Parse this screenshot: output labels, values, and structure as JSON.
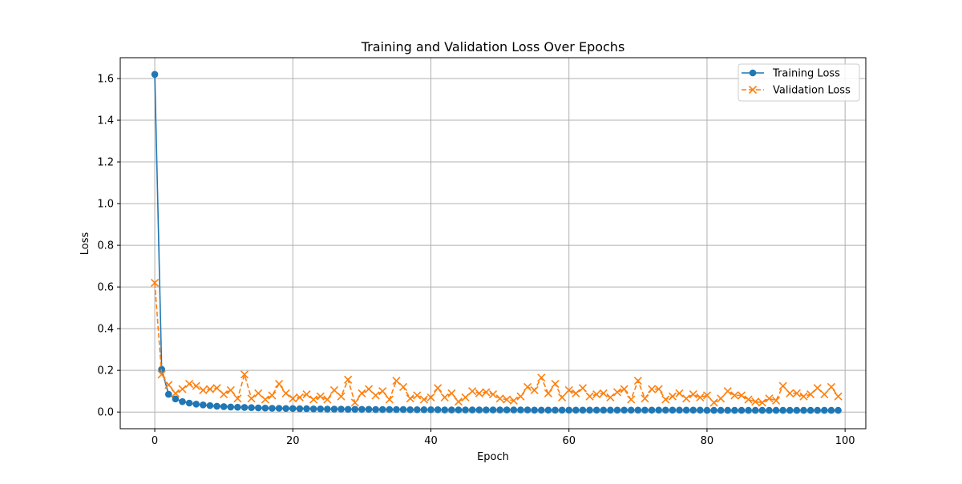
{
  "chart_data": {
    "type": "line",
    "title": "Training and Validation Loss Over Epochs",
    "xlabel": "Epoch",
    "ylabel": "Loss",
    "xlim": [
      -5,
      103
    ],
    "ylim": [
      -0.08,
      1.7
    ],
    "xticks": [
      0,
      20,
      40,
      60,
      80,
      100
    ],
    "yticks": [
      0.0,
      0.2,
      0.4,
      0.6,
      0.8,
      1.0,
      1.2,
      1.4,
      1.6
    ],
    "grid": true,
    "legend": "top-right",
    "x": [
      0,
      1,
      2,
      3,
      4,
      5,
      6,
      7,
      8,
      9,
      10,
      11,
      12,
      13,
      14,
      15,
      16,
      17,
      18,
      19,
      20,
      21,
      22,
      23,
      24,
      25,
      26,
      27,
      28,
      29,
      30,
      31,
      32,
      33,
      34,
      35,
      36,
      37,
      38,
      39,
      40,
      41,
      42,
      43,
      44,
      45,
      46,
      47,
      48,
      49,
      50,
      51,
      52,
      53,
      54,
      55,
      56,
      57,
      58,
      59,
      60,
      61,
      62,
      63,
      64,
      65,
      66,
      67,
      68,
      69,
      70,
      71,
      72,
      73,
      74,
      75,
      76,
      77,
      78,
      79,
      80,
      81,
      82,
      83,
      84,
      85,
      86,
      87,
      88,
      89,
      90,
      91,
      92,
      93,
      94,
      95,
      96,
      97,
      98,
      99
    ],
    "series": [
      {
        "name": "Training Loss",
        "color": "#1f77b4",
        "linestyle": "solid",
        "marker": "circle",
        "values": [
          1.62,
          0.205,
          0.085,
          0.063,
          0.05,
          0.043,
          0.038,
          0.034,
          0.031,
          0.028,
          0.026,
          0.024,
          0.023,
          0.022,
          0.021,
          0.02,
          0.019,
          0.018,
          0.018,
          0.017,
          0.017,
          0.016,
          0.016,
          0.015,
          0.015,
          0.014,
          0.014,
          0.014,
          0.013,
          0.013,
          0.013,
          0.013,
          0.012,
          0.012,
          0.012,
          0.012,
          0.012,
          0.011,
          0.011,
          0.011,
          0.011,
          0.011,
          0.01,
          0.01,
          0.01,
          0.01,
          0.01,
          0.01,
          0.01,
          0.01,
          0.01,
          0.01,
          0.01,
          0.01,
          0.01,
          0.009,
          0.009,
          0.009,
          0.009,
          0.009,
          0.009,
          0.009,
          0.009,
          0.009,
          0.009,
          0.009,
          0.009,
          0.009,
          0.009,
          0.009,
          0.009,
          0.009,
          0.009,
          0.009,
          0.009,
          0.009,
          0.009,
          0.009,
          0.009,
          0.009,
          0.008,
          0.008,
          0.008,
          0.008,
          0.008,
          0.008,
          0.008,
          0.008,
          0.008,
          0.008,
          0.008,
          0.008,
          0.008,
          0.008,
          0.008,
          0.008,
          0.008,
          0.008,
          0.008,
          0.008
        ]
      },
      {
        "name": "Validation Loss",
        "color": "#ff7f0e",
        "linestyle": "dashed",
        "marker": "x",
        "values": [
          0.62,
          0.18,
          0.13,
          0.09,
          0.11,
          0.135,
          0.125,
          0.105,
          0.11,
          0.115,
          0.085,
          0.105,
          0.065,
          0.18,
          0.065,
          0.09,
          0.06,
          0.08,
          0.135,
          0.09,
          0.065,
          0.07,
          0.085,
          0.06,
          0.075,
          0.06,
          0.105,
          0.075,
          0.155,
          0.045,
          0.09,
          0.11,
          0.08,
          0.1,
          0.06,
          0.15,
          0.12,
          0.065,
          0.08,
          0.06,
          0.07,
          0.115,
          0.07,
          0.09,
          0.05,
          0.07,
          0.1,
          0.09,
          0.095,
          0.085,
          0.065,
          0.06,
          0.055,
          0.075,
          0.12,
          0.105,
          0.165,
          0.09,
          0.135,
          0.07,
          0.105,
          0.09,
          0.115,
          0.075,
          0.085,
          0.09,
          0.07,
          0.095,
          0.11,
          0.06,
          0.15,
          0.065,
          0.11,
          0.11,
          0.06,
          0.075,
          0.09,
          0.065,
          0.085,
          0.07,
          0.08,
          0.045,
          0.065,
          0.1,
          0.08,
          0.08,
          0.06,
          0.05,
          0.045,
          0.065,
          0.055,
          0.125,
          0.09,
          0.09,
          0.075,
          0.085,
          0.115,
          0.085,
          0.12,
          0.075
        ]
      }
    ]
  }
}
